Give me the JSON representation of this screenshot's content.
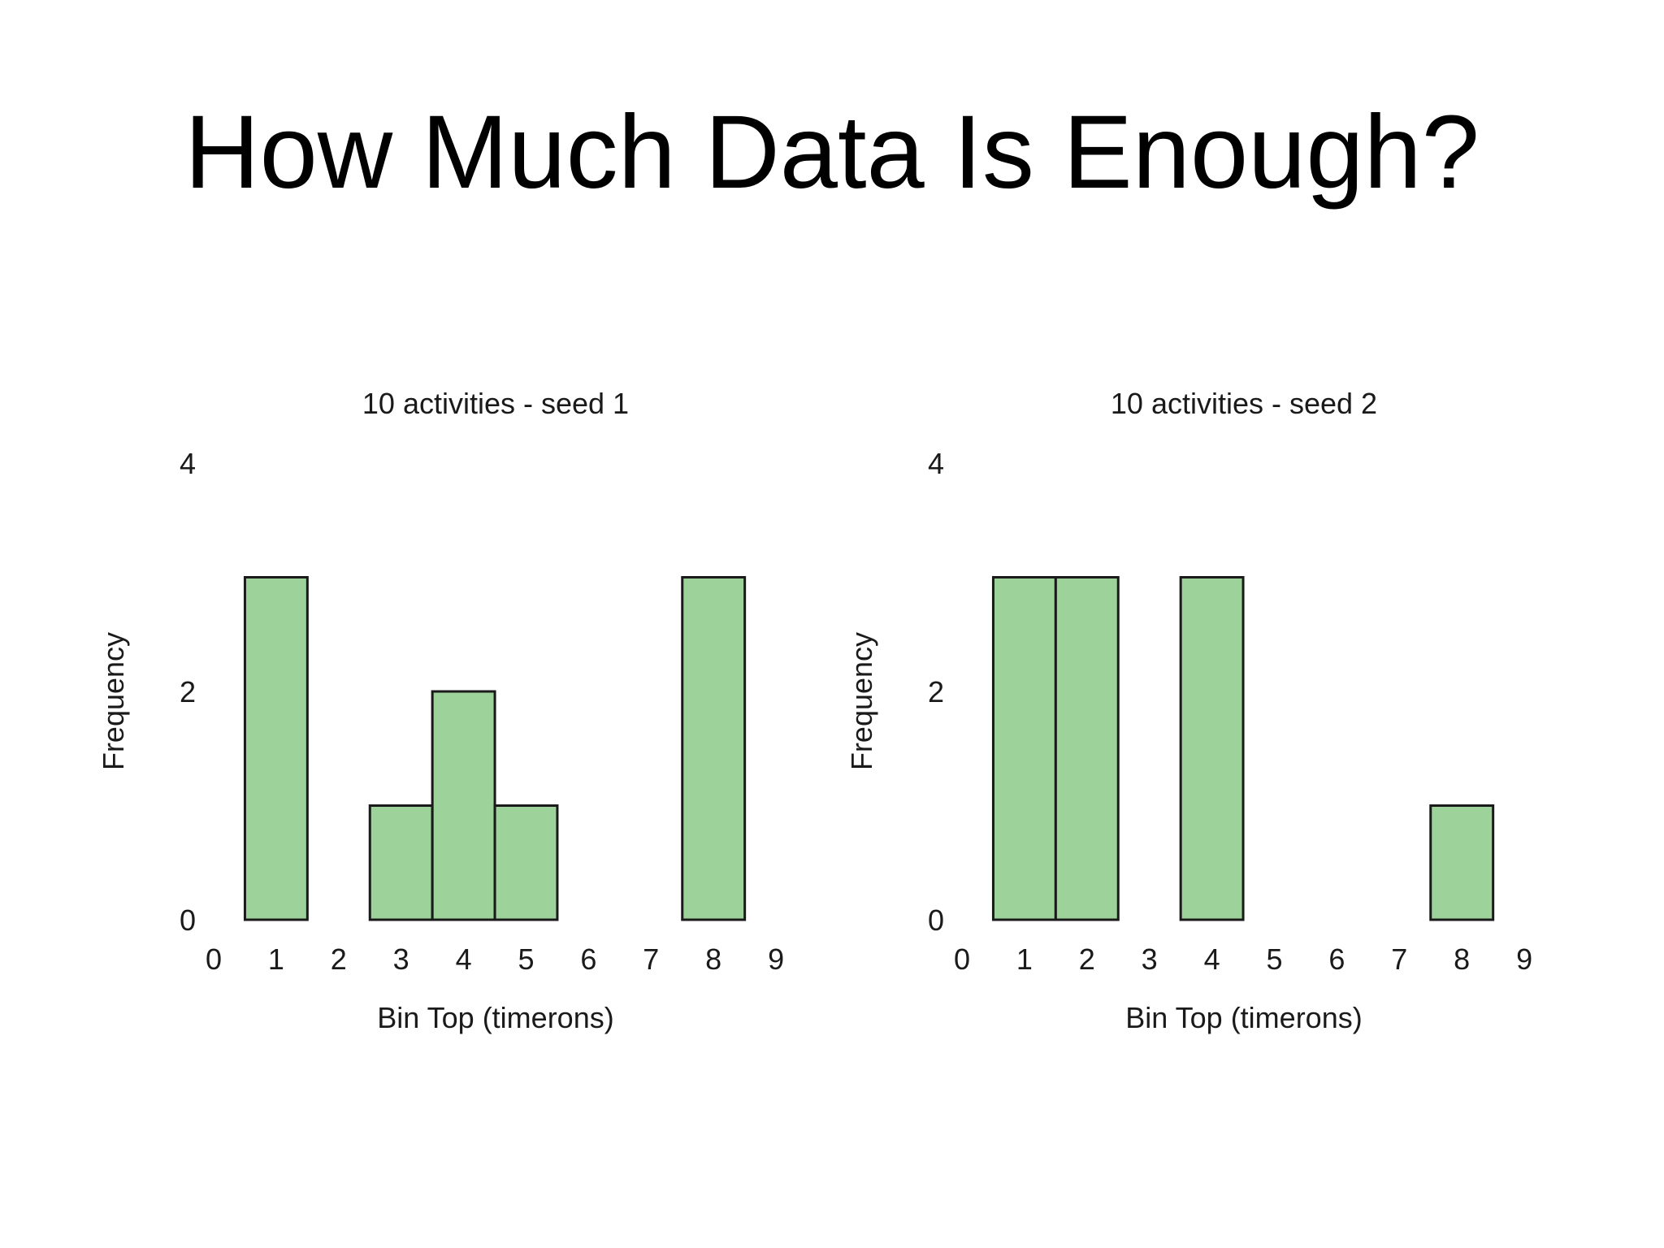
{
  "slide": {
    "title": "How Much Data Is Enough?"
  },
  "colors": {
    "bar_fill": "#9dd29a",
    "bar_stroke": "#1a1a1a",
    "text": "#1a1a1a"
  },
  "chart_data": [
    {
      "type": "bar",
      "title": "10 activities - seed 1",
      "xlabel": "Bin Top (timerons)",
      "ylabel": "Frequency",
      "x_ticks": [
        "0",
        "1",
        "2",
        "3",
        "4",
        "5",
        "6",
        "7",
        "8",
        "9"
      ],
      "y_ticks": [
        "0",
        "2",
        "4"
      ],
      "xlim": [
        0,
        9
      ],
      "ylim": [
        0,
        4
      ],
      "bars": [
        {
          "x": 1,
          "value": 3
        },
        {
          "x": 3,
          "value": 1
        },
        {
          "x": 4,
          "value": 2
        },
        {
          "x": 5,
          "value": 1
        },
        {
          "x": 8,
          "value": 3
        }
      ],
      "grid": false,
      "legend": "none"
    },
    {
      "type": "bar",
      "title": "10 activities - seed 2",
      "xlabel": "Bin Top (timerons)",
      "ylabel": "Frequency",
      "x_ticks": [
        "0",
        "1",
        "2",
        "3",
        "4",
        "5",
        "6",
        "7",
        "8",
        "9"
      ],
      "y_ticks": [
        "0",
        "2",
        "4"
      ],
      "xlim": [
        0,
        9
      ],
      "ylim": [
        0,
        4
      ],
      "bars": [
        {
          "x": 1,
          "value": 3
        },
        {
          "x": 2,
          "value": 3
        },
        {
          "x": 4,
          "value": 3
        },
        {
          "x": 8,
          "value": 1
        }
      ],
      "grid": false,
      "legend": "none"
    }
  ]
}
